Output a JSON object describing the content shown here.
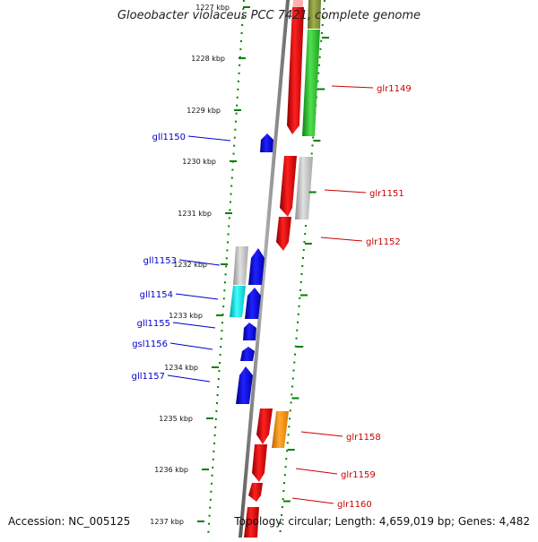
{
  "title": "Gloeobacter violaceus PCC 7421, complete genome",
  "footer": {
    "accession_label": "Accession: NC_005125",
    "topology_label": "Topology: circular; Length: 4,659,019 bp; Genes: 4,482"
  },
  "colors": {
    "forward_gene": "#ff0000",
    "reverse_gene": "#0000ff",
    "pseudo_gene": "#c0c0c0",
    "rna_gene": "#00e0e0",
    "green_gene": "#33cc33",
    "orange_gene": "#ff9900",
    "ruler_tick": "#008000",
    "backbone": "#808080"
  },
  "chart_data": {
    "type": "diagram",
    "kbp_labels": [
      "1227 kbp",
      "1228 kbp",
      "1229 kbp",
      "1230 kbp",
      "1231 kbp",
      "1232 kbp",
      "1233 kbp",
      "1234 kbp",
      "1235 kbp",
      "1236 kbp",
      "1237 kbp"
    ],
    "forward_labels": [
      "glr1149",
      "glr1151",
      "glr1152",
      "glr1158",
      "glr1159",
      "glr1160"
    ],
    "reverse_labels": [
      "gll1150",
      "gll1153",
      "gll1154",
      "gll1155",
      "gsl1156",
      "gll1157"
    ]
  }
}
